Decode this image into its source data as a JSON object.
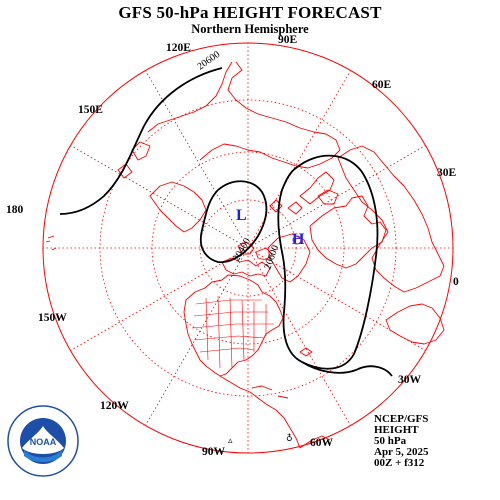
{
  "header": {
    "title": "GFS 50-hPa HEIGHT FORECAST",
    "subtitle": "Northern Hemisphere"
  },
  "longitude_labels": [
    "90E",
    "60E",
    "30E",
    "0",
    "30W",
    "60W",
    "90W",
    "120W",
    "150W",
    "180",
    "150E",
    "120E"
  ],
  "contour_labels": [
    "20600",
    "20400",
    "20600"
  ],
  "pressure_centers": [
    {
      "symbol": "L",
      "color": "#1a1aff"
    },
    {
      "symbol": "H",
      "color": "#1a1aff"
    }
  ],
  "info_block": {
    "line1": "NCEP/GFS",
    "line2": "HEIGHT",
    "line3": "50 hPa",
    "line4": "Apr 5, 2025",
    "line5": "00Z + f312"
  },
  "colors": {
    "coastline": "#ff0000",
    "contour": "#000000",
    "grid": "#ff0000",
    "noaa_blue": "#1e4fa8"
  },
  "logo": {
    "text": "NOAA",
    "icon": "noaa-logo-icon"
  }
}
